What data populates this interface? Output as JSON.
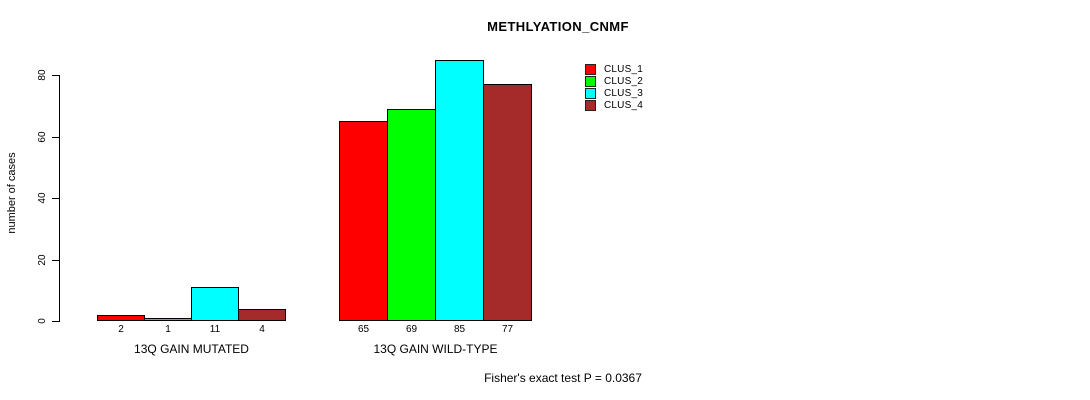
{
  "chart_data": {
    "type": "bar",
    "title": "METHLYATION_CNMF",
    "ylabel": "number of cases",
    "xlabel": "",
    "categories": [
      "13Q GAIN MUTATED",
      "13Q GAIN WILD-TYPE"
    ],
    "series": [
      {
        "name": "CLUS_1",
        "color": "#ff0000",
        "values": [
          2,
          65
        ]
      },
      {
        "name": "CLUS_2",
        "color": "#00ff00",
        "values": [
          1,
          69
        ]
      },
      {
        "name": "CLUS_3",
        "color": "#00ffff",
        "values": [
          11,
          85
        ]
      },
      {
        "name": "CLUS_4",
        "color": "#a52a2a",
        "values": [
          4,
          77
        ]
      }
    ],
    "yticks": [
      0,
      20,
      40,
      60,
      80
    ],
    "ylim": [
      0,
      85
    ],
    "grid": false,
    "bar_value_labels": true,
    "legend_position": "top-right",
    "annotation": "Fisher's exact test P = 0.0367"
  }
}
